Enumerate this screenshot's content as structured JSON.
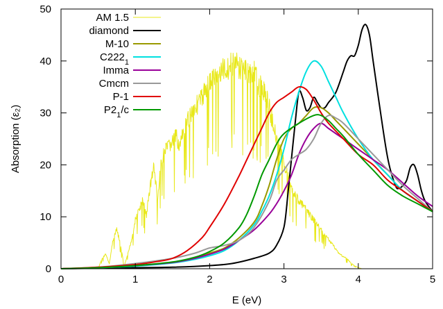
{
  "chart_data": {
    "type": "line",
    "title": "",
    "xlabel": "E (eV)",
    "ylabel": "Absorption (ε₂)",
    "xlim": [
      0,
      5
    ],
    "ylim": [
      0,
      50
    ],
    "xticks": [
      0,
      1,
      2,
      3,
      4,
      5
    ],
    "yticks": [
      0,
      10,
      20,
      30,
      40,
      50
    ],
    "grid": false,
    "legend_position": "top-left",
    "series": [
      {
        "name": "AM 1.5",
        "color": "#e8e81a",
        "style": "noisy",
        "x": [
          0.5,
          0.55,
          0.6,
          0.65,
          0.7,
          0.75,
          0.8,
          0.85,
          0.9,
          0.95,
          1.0,
          1.05,
          1.1,
          1.15,
          1.2,
          1.25,
          1.3,
          1.35,
          1.4,
          1.45,
          1.5,
          1.55,
          1.6,
          1.65,
          1.7,
          1.75,
          1.8,
          1.85,
          1.9,
          1.95,
          2.0,
          2.05,
          2.1,
          2.15,
          2.2,
          2.25,
          2.3,
          2.35,
          2.4,
          2.45,
          2.5,
          2.55,
          2.6,
          2.65,
          2.7,
          2.75,
          2.8,
          2.85,
          2.9,
          2.95,
          3.0,
          3.05,
          3.1,
          3.15,
          3.2,
          3.25,
          3.3,
          3.35,
          3.4,
          3.45,
          3.5,
          3.55,
          3.6,
          3.65,
          3.7,
          3.75,
          3.8,
          3.85,
          3.9,
          3.95,
          4.0,
          4.05,
          4.1
        ],
        "y": [
          0,
          2,
          3,
          1,
          6,
          8,
          5,
          0.5,
          3,
          6,
          10,
          12,
          14,
          11,
          17,
          21,
          14,
          22,
          24,
          25,
          26,
          27,
          25,
          28,
          30,
          32,
          33,
          34,
          35,
          37,
          38,
          39,
          39,
          40,
          41,
          41,
          42,
          42,
          41,
          41,
          40,
          40,
          40,
          38,
          37,
          36,
          33,
          30,
          27,
          24,
          22,
          19,
          17,
          15,
          14,
          13,
          12,
          11,
          10,
          9,
          8,
          7,
          6,
          5,
          4,
          3,
          2.5,
          2,
          1.2,
          0.6,
          0.2,
          0,
          0
        ]
      },
      {
        "name": "diamond",
        "color": "#000000",
        "x": [
          0,
          0.5,
          1.0,
          1.5,
          2.0,
          2.3,
          2.6,
          2.8,
          2.9,
          3.0,
          3.05,
          3.1,
          3.15,
          3.2,
          3.25,
          3.3,
          3.35,
          3.4,
          3.45,
          3.5,
          3.55,
          3.6,
          3.7,
          3.8,
          3.85,
          3.9,
          3.95,
          4.0,
          4.05,
          4.1,
          4.15,
          4.2,
          4.3,
          4.4,
          4.5,
          4.55,
          4.6,
          4.65,
          4.7,
          4.75,
          4.8,
          4.85,
          4.9,
          5.0
        ],
        "y": [
          0,
          0.1,
          0.2,
          0.3,
          0.6,
          1.0,
          2.0,
          3.0,
          4.5,
          8,
          14,
          21,
          28,
          34,
          33,
          30.5,
          31,
          33,
          32,
          31,
          31,
          32,
          34,
          38,
          40,
          41,
          41,
          43,
          46,
          47,
          45,
          40,
          30,
          21,
          16,
          15.5,
          16,
          17,
          19.5,
          20,
          18,
          15,
          13,
          11
        ]
      },
      {
        "name": "M-10",
        "color": "#999900",
        "x": [
          0,
          0.5,
          1.0,
          1.5,
          1.8,
          2.0,
          2.2,
          2.4,
          2.6,
          2.7,
          2.8,
          2.9,
          3.0,
          3.1,
          3.2,
          3.3,
          3.4,
          3.5,
          3.6,
          3.7,
          3.8,
          4.0,
          4.2,
          4.4,
          4.6,
          4.8,
          5.0
        ],
        "y": [
          0,
          0.2,
          0.6,
          1.2,
          2.0,
          3.0,
          4.0,
          6.0,
          9.0,
          12,
          16,
          21,
          25,
          27,
          28,
          29.5,
          31,
          31,
          30,
          28.5,
          27,
          24,
          21,
          18,
          15,
          13,
          11
        ]
      },
      {
        "name": "C222_1",
        "color": "#00e0e0",
        "x": [
          0,
          0.5,
          1.0,
          1.5,
          1.8,
          2.0,
          2.2,
          2.4,
          2.6,
          2.7,
          2.8,
          2.9,
          3.0,
          3.1,
          3.2,
          3.3,
          3.4,
          3.5,
          3.6,
          3.7,
          3.8,
          4.0,
          4.2,
          4.4,
          4.6,
          4.8,
          5.0
        ],
        "y": [
          0,
          0.2,
          0.5,
          1.1,
          1.8,
          2.5,
          3.5,
          5.5,
          8.5,
          11,
          14,
          18,
          23,
          29,
          34,
          38,
          40,
          39,
          36,
          33,
          30,
          25,
          21,
          18,
          15,
          13,
          11
        ]
      },
      {
        "name": "Imma",
        "color": "#990099",
        "x": [
          0,
          0.5,
          1.0,
          1.5,
          1.8,
          2.0,
          2.2,
          2.4,
          2.6,
          2.8,
          2.9,
          3.0,
          3.1,
          3.2,
          3.3,
          3.4,
          3.5,
          3.6,
          3.7,
          3.8,
          4.0,
          4.2,
          4.4,
          4.6,
          4.8,
          5.0
        ],
        "y": [
          0,
          0.2,
          0.6,
          1.2,
          2.0,
          2.8,
          3.8,
          5.5,
          7.5,
          10.5,
          12.5,
          15,
          18,
          22,
          25,
          27,
          28,
          27,
          26,
          25,
          23,
          21,
          19,
          16.5,
          14,
          12
        ]
      },
      {
        "name": "Cmcm",
        "color": "#999999",
        "x": [
          0,
          0.5,
          1.0,
          1.5,
          1.8,
          2.0,
          2.2,
          2.4,
          2.6,
          2.8,
          2.9,
          3.0,
          3.1,
          3.2,
          3.3,
          3.4,
          3.5,
          3.6,
          3.7,
          3.8,
          4.0,
          4.2,
          4.4,
          4.6,
          4.8,
          5.0
        ],
        "y": [
          0,
          0.3,
          1.0,
          2.0,
          3.0,
          4.0,
          4.5,
          5.5,
          8,
          13,
          17,
          19,
          21,
          22,
          23,
          25,
          28,
          29.5,
          29,
          28,
          25,
          22,
          19,
          16,
          13.5,
          11
        ]
      },
      {
        "name": "P-1",
        "color": "#e00000",
        "x": [
          0,
          0.5,
          1.0,
          1.3,
          1.5,
          1.7,
          1.9,
          2.0,
          2.2,
          2.4,
          2.5,
          2.6,
          2.7,
          2.8,
          2.9,
          3.0,
          3.1,
          3.2,
          3.3,
          3.4,
          3.5,
          3.6,
          3.8,
          4.0,
          4.2,
          4.4,
          4.6,
          4.8,
          5.0
        ],
        "y": [
          0,
          0.3,
          0.8,
          1.4,
          2.0,
          3.5,
          6,
          8,
          12.5,
          18,
          21,
          24,
          27,
          30,
          32,
          33,
          34,
          35,
          34.5,
          32.5,
          30,
          28,
          25,
          22,
          20,
          17,
          15,
          13,
          11
        ]
      },
      {
        "name": "P2_1/c",
        "color": "#009900",
        "x": [
          0,
          0.5,
          1.0,
          1.5,
          1.8,
          2.0,
          2.2,
          2.4,
          2.5,
          2.6,
          2.7,
          2.8,
          2.9,
          3.0,
          3.2,
          3.4,
          3.5,
          3.6,
          3.7,
          3.8,
          4.0,
          4.2,
          4.4,
          4.6,
          4.8,
          5.0
        ],
        "y": [
          0,
          0.2,
          0.6,
          1.3,
          2.2,
          3.3,
          5,
          8,
          10.5,
          14,
          18,
          21,
          24,
          26,
          28,
          29.5,
          29.5,
          28.5,
          27,
          25.5,
          22,
          19,
          16,
          14,
          12.5,
          11
        ]
      }
    ]
  }
}
